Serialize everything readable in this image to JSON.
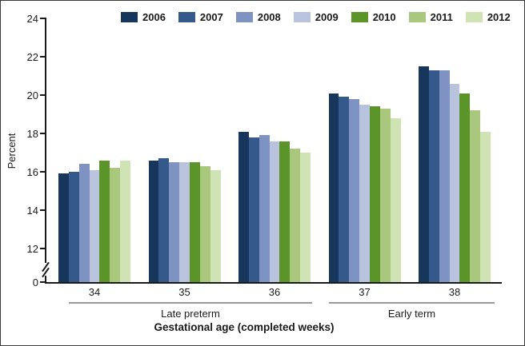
{
  "figure": {
    "y_axis_title": "Percent",
    "x_axis_title": "Gestational age (completed weeks)",
    "border_color": "#3c3c3c",
    "span_line_color": "#999999",
    "axis_color": "#1a1a1a"
  },
  "chart_data": {
    "type": "bar",
    "title": "",
    "xlabel": "Gestational age (completed weeks)",
    "ylabel": "Percent",
    "categories": [
      "34",
      "35",
      "36",
      "37",
      "38"
    ],
    "category_groups": [
      {
        "label": "Late preterm",
        "categories": [
          "34",
          "35",
          "36"
        ]
      },
      {
        "label": "Early term",
        "categories": [
          "37",
          "38"
        ]
      }
    ],
    "series": [
      {
        "name": "2006",
        "color": "#16365c",
        "values": [
          15.9,
          16.6,
          18.1,
          20.1,
          21.5
        ]
      },
      {
        "name": "2007",
        "color": "#36598c",
        "values": [
          16.0,
          16.7,
          17.8,
          19.9,
          21.3
        ]
      },
      {
        "name": "2008",
        "color": "#7e93c1",
        "values": [
          16.4,
          16.5,
          17.9,
          19.8,
          21.3
        ]
      },
      {
        "name": "2009",
        "color": "#b9c3de",
        "values": [
          16.1,
          16.5,
          17.6,
          19.5,
          20.6
        ]
      },
      {
        "name": "2010",
        "color": "#5b9428",
        "values": [
          16.6,
          16.5,
          17.6,
          19.4,
          20.1
        ]
      },
      {
        "name": "2011",
        "color": "#a9c87d",
        "values": [
          16.2,
          16.3,
          17.2,
          19.3,
          19.2
        ]
      },
      {
        "name": "2012",
        "color": "#d0e3b4",
        "values": [
          16.6,
          16.1,
          17.0,
          18.8,
          18.1
        ]
      }
    ],
    "y_ticks": [
      24,
      22,
      20,
      18,
      16,
      14,
      12,
      0
    ],
    "ylim_display": [
      12,
      24
    ],
    "y_axis_break": true,
    "grid": false,
    "legend_position": "top"
  }
}
